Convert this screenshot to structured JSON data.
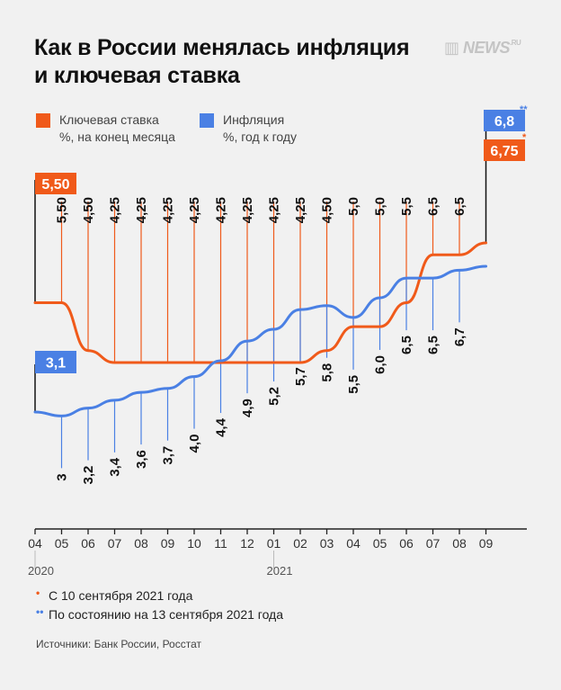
{
  "header": {
    "title_line1": "Как в России менялась инфляция",
    "title_line2": "и ключевая ставка",
    "logo_text": "NEWS",
    "logo_sup": ".RU",
    "logo_icon": "news-ru-logo-icon"
  },
  "legend": {
    "key_rate_line1": "Ключевая ставка",
    "key_rate_line2": "%, на конец месяца",
    "inflation_line1": "Инфляция",
    "inflation_line2": "%, год к году"
  },
  "colors": {
    "key_rate": "#f05a1a",
    "inflation": "#4a80e4",
    "background": "#f1f1f1",
    "axis": "#222222"
  },
  "chart_data": {
    "type": "line",
    "x": [
      "04",
      "05",
      "06",
      "07",
      "08",
      "09",
      "10",
      "11",
      "12",
      "01",
      "02",
      "03",
      "04",
      "05",
      "06",
      "07",
      "08",
      "09"
    ],
    "year_labels": [
      {
        "at": "04",
        "label": "2020"
      },
      {
        "at": "01",
        "label": "2021"
      }
    ],
    "series": [
      {
        "name": "Ключевая ставка",
        "values": [
          5.5,
          5.5,
          4.5,
          4.25,
          4.25,
          4.25,
          4.25,
          4.25,
          4.25,
          4.25,
          4.25,
          4.5,
          5.0,
          5.0,
          5.5,
          6.5,
          6.5,
          6.75
        ],
        "labels": [
          "5,50",
          "5,50",
          "4,50",
          "4,25",
          "4,25",
          "4,25",
          "4,25",
          "4,25",
          "4,25",
          "4,25",
          "4,25",
          "4,50",
          "5,0",
          "5,0",
          "5,5",
          "6,5",
          "6,5",
          "6,75"
        ]
      },
      {
        "name": "Инфляция",
        "values": [
          3.1,
          3.0,
          3.2,
          3.4,
          3.6,
          3.7,
          4.0,
          4.4,
          4.9,
          5.2,
          5.7,
          5.8,
          5.5,
          6.0,
          6.5,
          6.5,
          6.7,
          6.8
        ],
        "labels": [
          "3,1",
          "3",
          "3,2",
          "3,4",
          "3,6",
          "3,7",
          "4,0",
          "4,4",
          "4,9",
          "5,2",
          "5,7",
          "5,8",
          "5,5",
          "6,0",
          "6,5",
          "6,5",
          "6,7",
          "6,8"
        ]
      }
    ],
    "marks": {
      "last_key_rate": "*",
      "last_inflation": "**"
    }
  },
  "notes": [
    {
      "mark": "•",
      "text": "С 10 сентября 2021 года"
    },
    {
      "mark": "••",
      "text": "По состоянию на 13 сентября 2021 года"
    }
  ],
  "source": "Источники: Банк России, Росстат"
}
